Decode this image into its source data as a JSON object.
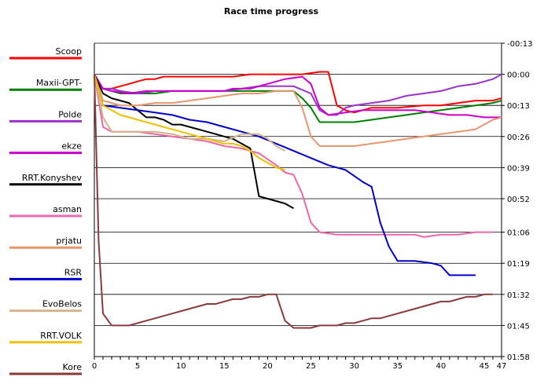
{
  "chart_data": {
    "type": "line",
    "title": "Race time progress",
    "xlabel": "",
    "ylabel": "",
    "xlim": [
      0,
      47
    ],
    "ylim_seconds": [
      -13,
      118
    ],
    "x_ticks": [
      0,
      5,
      10,
      15,
      20,
      25,
      30,
      35,
      40,
      45,
      47
    ],
    "y_ticks": [
      {
        "value": -13,
        "label": "-00:13"
      },
      {
        "value": 0,
        "label": "00:00"
      },
      {
        "value": 13,
        "label": "00:13"
      },
      {
        "value": 26,
        "label": "00:26"
      },
      {
        "value": 39,
        "label": "00:39"
      },
      {
        "value": 52,
        "label": "00:52"
      },
      {
        "value": 66,
        "label": "01:06"
      },
      {
        "value": 79,
        "label": "01:19"
      },
      {
        "value": 92,
        "label": "01:32"
      },
      {
        "value": 105,
        "label": "01:45"
      },
      {
        "value": 118,
        "label": "01:58"
      }
    ],
    "grid": "horizontal",
    "legend_position": "left",
    "series": [
      {
        "name": "Scoop",
        "color": "#ff0000",
        "points": [
          [
            0,
            0
          ],
          [
            1,
            6
          ],
          [
            2,
            6
          ],
          [
            3,
            5
          ],
          [
            4,
            4
          ],
          [
            5,
            3
          ],
          [
            6,
            2
          ],
          [
            7,
            2
          ],
          [
            8,
            1
          ],
          [
            9,
            1
          ],
          [
            10,
            1
          ],
          [
            12,
            1
          ],
          [
            14,
            1
          ],
          [
            16,
            1
          ],
          [
            18,
            0
          ],
          [
            20,
            0
          ],
          [
            22,
            0
          ],
          [
            24,
            0
          ],
          [
            26,
            -1
          ],
          [
            27,
            -1
          ],
          [
            28,
            13
          ],
          [
            29,
            15
          ],
          [
            30,
            16
          ],
          [
            32,
            14
          ],
          [
            35,
            14
          ],
          [
            38,
            13
          ],
          [
            40,
            13
          ],
          [
            42,
            12
          ],
          [
            44,
            11
          ],
          [
            46,
            11
          ],
          [
            47,
            10
          ]
        ]
      },
      {
        "name": "Maxii-GPT-",
        "color": "#008000",
        "points": [
          [
            0,
            0
          ],
          [
            1,
            6
          ],
          [
            2,
            7
          ],
          [
            3,
            8
          ],
          [
            5,
            8
          ],
          [
            7,
            8
          ],
          [
            9,
            7
          ],
          [
            11,
            7
          ],
          [
            13,
            7
          ],
          [
            15,
            7
          ],
          [
            17,
            7
          ],
          [
            19,
            7
          ],
          [
            21,
            7
          ],
          [
            23,
            7
          ],
          [
            24,
            10
          ],
          [
            25,
            14
          ],
          [
            26,
            20
          ],
          [
            28,
            20
          ],
          [
            30,
            20
          ],
          [
            32,
            19
          ],
          [
            34,
            18
          ],
          [
            36,
            17
          ],
          [
            38,
            16
          ],
          [
            40,
            15
          ],
          [
            42,
            14
          ],
          [
            44,
            13
          ],
          [
            46,
            12
          ],
          [
            47,
            11
          ]
        ]
      },
      {
        "name": "Polde",
        "color": "#9933cc",
        "points": [
          [
            0,
            0
          ],
          [
            1,
            6
          ],
          [
            2,
            6
          ],
          [
            3,
            7
          ],
          [
            5,
            8
          ],
          [
            7,
            7
          ],
          [
            9,
            7
          ],
          [
            11,
            7
          ],
          [
            13,
            7
          ],
          [
            15,
            7
          ],
          [
            17,
            6
          ],
          [
            19,
            5
          ],
          [
            21,
            5
          ],
          [
            23,
            5
          ],
          [
            25,
            8
          ],
          [
            26,
            15
          ],
          [
            27,
            17
          ],
          [
            28,
            17
          ],
          [
            29,
            14
          ],
          [
            30,
            13
          ],
          [
            32,
            12
          ],
          [
            34,
            11
          ],
          [
            36,
            9
          ],
          [
            38,
            8
          ],
          [
            40,
            7
          ],
          [
            42,
            5
          ],
          [
            44,
            4
          ],
          [
            46,
            2
          ],
          [
            47,
            0
          ]
        ]
      },
      {
        "name": "ekze",
        "color": "#cc00cc",
        "points": [
          [
            0,
            0
          ],
          [
            1,
            6
          ],
          [
            2,
            7
          ],
          [
            4,
            8
          ],
          [
            6,
            7
          ],
          [
            8,
            7
          ],
          [
            10,
            7
          ],
          [
            12,
            7
          ],
          [
            14,
            7
          ],
          [
            15,
            7
          ],
          [
            16,
            6
          ],
          [
            18,
            6
          ],
          [
            20,
            4
          ],
          [
            22,
            2
          ],
          [
            24,
            1
          ],
          [
            25,
            4
          ],
          [
            26,
            14
          ],
          [
            27,
            17
          ],
          [
            29,
            16
          ],
          [
            31,
            15
          ],
          [
            33,
            15
          ],
          [
            35,
            15
          ],
          [
            37,
            15
          ],
          [
            39,
            16
          ],
          [
            41,
            17
          ],
          [
            43,
            17
          ],
          [
            45,
            18
          ],
          [
            47,
            18
          ]
        ]
      },
      {
        "name": "RRT.Konyshev",
        "color": "#000000",
        "points": [
          [
            0,
            0
          ],
          [
            1,
            8
          ],
          [
            2,
            10
          ],
          [
            3,
            11
          ],
          [
            4,
            12
          ],
          [
            5,
            15
          ],
          [
            6,
            18
          ],
          [
            7,
            18
          ],
          [
            8,
            19
          ],
          [
            9,
            21
          ],
          [
            10,
            21
          ],
          [
            11,
            22
          ],
          [
            12,
            23
          ],
          [
            13,
            24
          ],
          [
            14,
            25
          ],
          [
            15,
            26
          ],
          [
            16,
            27
          ],
          [
            17,
            29
          ],
          [
            18,
            31
          ],
          [
            19,
            51
          ],
          [
            20,
            52
          ],
          [
            21,
            53
          ],
          [
            22,
            54
          ],
          [
            23,
            56
          ]
        ]
      },
      {
        "name": "asman",
        "color": "#ee66aa",
        "points": [
          [
            0,
            0
          ],
          [
            1,
            22
          ],
          [
            2,
            24
          ],
          [
            3,
            24
          ],
          [
            5,
            24
          ],
          [
            7,
            25
          ],
          [
            9,
            26
          ],
          [
            11,
            27
          ],
          [
            13,
            28
          ],
          [
            15,
            30
          ],
          [
            17,
            31
          ],
          [
            19,
            33
          ],
          [
            21,
            38
          ],
          [
            22,
            41
          ],
          [
            23,
            42
          ],
          [
            24,
            50
          ],
          [
            25,
            62
          ],
          [
            26,
            66
          ],
          [
            28,
            67
          ],
          [
            30,
            67
          ],
          [
            32,
            67
          ],
          [
            34,
            67
          ],
          [
            36,
            67
          ],
          [
            37,
            67
          ],
          [
            38,
            68
          ],
          [
            40,
            67
          ],
          [
            42,
            67
          ],
          [
            44,
            66
          ],
          [
            46,
            66
          ]
        ]
      },
      {
        "name": "prjatu",
        "color": "#e8966e",
        "points": [
          [
            0,
            0
          ],
          [
            1,
            11
          ],
          [
            2,
            12
          ],
          [
            3,
            13
          ],
          [
            5,
            13
          ],
          [
            7,
            12
          ],
          [
            9,
            12
          ],
          [
            11,
            11
          ],
          [
            13,
            10
          ],
          [
            15,
            9
          ],
          [
            17,
            8
          ],
          [
            19,
            8
          ],
          [
            21,
            7
          ],
          [
            23,
            7
          ],
          [
            24,
            14
          ],
          [
            25,
            26
          ],
          [
            26,
            30
          ],
          [
            28,
            30
          ],
          [
            30,
            30
          ],
          [
            32,
            29
          ],
          [
            34,
            28
          ],
          [
            36,
            27
          ],
          [
            38,
            26
          ],
          [
            40,
            25
          ],
          [
            42,
            24
          ],
          [
            44,
            23
          ],
          [
            46,
            19
          ],
          [
            47,
            18
          ]
        ]
      },
      {
        "name": "RSR",
        "color": "#0000cc",
        "points": [
          [
            0,
            0
          ],
          [
            1,
            13
          ],
          [
            3,
            14
          ],
          [
            5,
            15
          ],
          [
            7,
            16
          ],
          [
            9,
            17
          ],
          [
            11,
            19
          ],
          [
            13,
            20
          ],
          [
            15,
            22
          ],
          [
            17,
            24
          ],
          [
            19,
            26
          ],
          [
            21,
            29
          ],
          [
            23,
            32
          ],
          [
            25,
            35
          ],
          [
            27,
            38
          ],
          [
            29,
            40
          ],
          [
            31,
            45
          ],
          [
            32,
            47
          ],
          [
            33,
            62
          ],
          [
            34,
            72
          ],
          [
            35,
            78
          ],
          [
            37,
            78
          ],
          [
            39,
            79
          ],
          [
            40,
            80
          ],
          [
            41,
            84
          ],
          [
            43,
            84
          ],
          [
            44,
            84
          ]
        ]
      },
      {
        "name": "EvoBelos",
        "color": "#d2b48c",
        "points": [
          [
            0,
            0
          ],
          [
            1,
            18
          ],
          [
            2,
            24
          ],
          [
            3,
            24
          ],
          [
            5,
            24
          ],
          [
            7,
            24
          ],
          [
            9,
            25
          ],
          [
            11,
            27
          ],
          [
            13,
            27
          ],
          [
            15,
            28
          ],
          [
            17,
            25
          ],
          [
            18,
            25
          ],
          [
            19,
            25
          ],
          [
            20,
            27
          ],
          [
            21,
            30
          ],
          [
            22,
            32
          ]
        ]
      },
      {
        "name": "RRT.VOLK",
        "color": "#f0c000",
        "points": [
          [
            0,
            0
          ],
          [
            1,
            13
          ],
          [
            2,
            15
          ],
          [
            3,
            17
          ],
          [
            4,
            18
          ],
          [
            5,
            19
          ],
          [
            6,
            20
          ],
          [
            7,
            21
          ],
          [
            8,
            22
          ],
          [
            9,
            23
          ],
          [
            10,
            24
          ],
          [
            11,
            25
          ],
          [
            12,
            26
          ],
          [
            13,
            27
          ],
          [
            14,
            28
          ],
          [
            15,
            29
          ],
          [
            16,
            29
          ],
          [
            17,
            30
          ],
          [
            18,
            32
          ],
          [
            19,
            35
          ],
          [
            20,
            37
          ],
          [
            21,
            39
          ],
          [
            22,
            40
          ]
        ]
      },
      {
        "name": "Kore",
        "color": "#8b3a3a",
        "points": [
          [
            0,
            0
          ],
          [
            0.5,
            70
          ],
          [
            1,
            100
          ],
          [
            2,
            105
          ],
          [
            3,
            105
          ],
          [
            4,
            105
          ],
          [
            5,
            104
          ],
          [
            6,
            103
          ],
          [
            7,
            102
          ],
          [
            8,
            101
          ],
          [
            9,
            100
          ],
          [
            10,
            99
          ],
          [
            11,
            98
          ],
          [
            12,
            97
          ],
          [
            13,
            96
          ],
          [
            14,
            96
          ],
          [
            15,
            95
          ],
          [
            16,
            94
          ],
          [
            17,
            94
          ],
          [
            18,
            93
          ],
          [
            19,
            93
          ],
          [
            20,
            92
          ],
          [
            21,
            92
          ],
          [
            22,
            103
          ],
          [
            23,
            106
          ],
          [
            24,
            106
          ],
          [
            25,
            106
          ],
          [
            26,
            105
          ],
          [
            27,
            105
          ],
          [
            28,
            105
          ],
          [
            29,
            104
          ],
          [
            30,
            104
          ],
          [
            31,
            103
          ],
          [
            32,
            102
          ],
          [
            33,
            102
          ],
          [
            34,
            101
          ],
          [
            35,
            100
          ],
          [
            36,
            99
          ],
          [
            37,
            98
          ],
          [
            38,
            97
          ],
          [
            39,
            96
          ],
          [
            40,
            95
          ],
          [
            41,
            95
          ],
          [
            42,
            94
          ],
          [
            43,
            93
          ],
          [
            44,
            93
          ],
          [
            45,
            92
          ],
          [
            46,
            92
          ]
        ]
      }
    ]
  }
}
